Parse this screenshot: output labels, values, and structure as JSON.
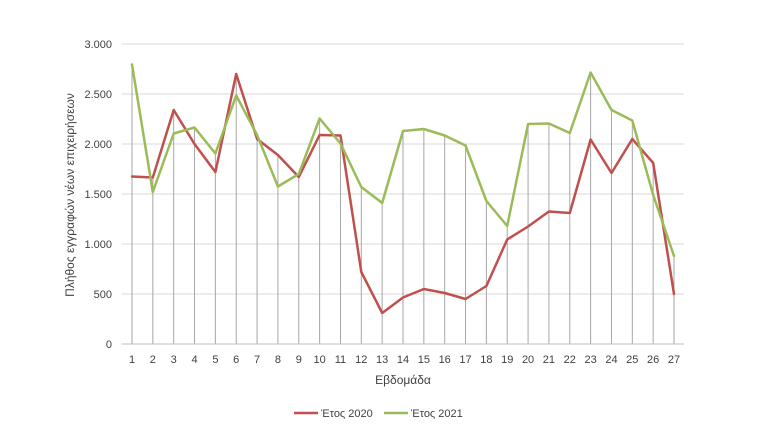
{
  "chart_data": {
    "type": "line",
    "title": "",
    "xlabel": "Εβδομάδα",
    "ylabel": "Πλήθος εγγραφών νέων επιχειρήσεων",
    "ylim": [
      0,
      3000
    ],
    "yticks": [
      0,
      500,
      1000,
      1500,
      2000,
      2500,
      3000
    ],
    "ytick_labels": [
      "0",
      "500",
      "1.000",
      "1.500",
      "2.000",
      "2.500",
      "3.000"
    ],
    "grid": "horizontal",
    "drop_lines": true,
    "legend_position": "bottom",
    "categories": [
      "1",
      "2",
      "3",
      "4",
      "5",
      "6",
      "7",
      "8",
      "9",
      "10",
      "11",
      "12",
      "13",
      "14",
      "15",
      "16",
      "17",
      "18",
      "19",
      "20",
      "21",
      "22",
      "23",
      "24",
      "25",
      "26",
      "27"
    ],
    "series": [
      {
        "name": "Έτος 2020",
        "color": "#c0504d",
        "values": [
          1675,
          1665,
          2340,
          2000,
          1720,
          2700,
          2050,
          1890,
          1670,
          2090,
          2085,
          720,
          310,
          465,
          550,
          510,
          450,
          580,
          1045,
          1175,
          1325,
          1310,
          2045,
          1710,
          2050,
          1810,
          500
        ]
      },
      {
        "name": "Έτος 2021",
        "color": "#9bbb59",
        "values": [
          2795,
          1520,
          2105,
          2165,
          1905,
          2485,
          2090,
          1575,
          1700,
          2255,
          2005,
          1570,
          1410,
          2130,
          2150,
          2085,
          1985,
          1430,
          1180,
          2200,
          2205,
          2110,
          2715,
          2340,
          2235,
          1490,
          880
        ]
      }
    ]
  }
}
